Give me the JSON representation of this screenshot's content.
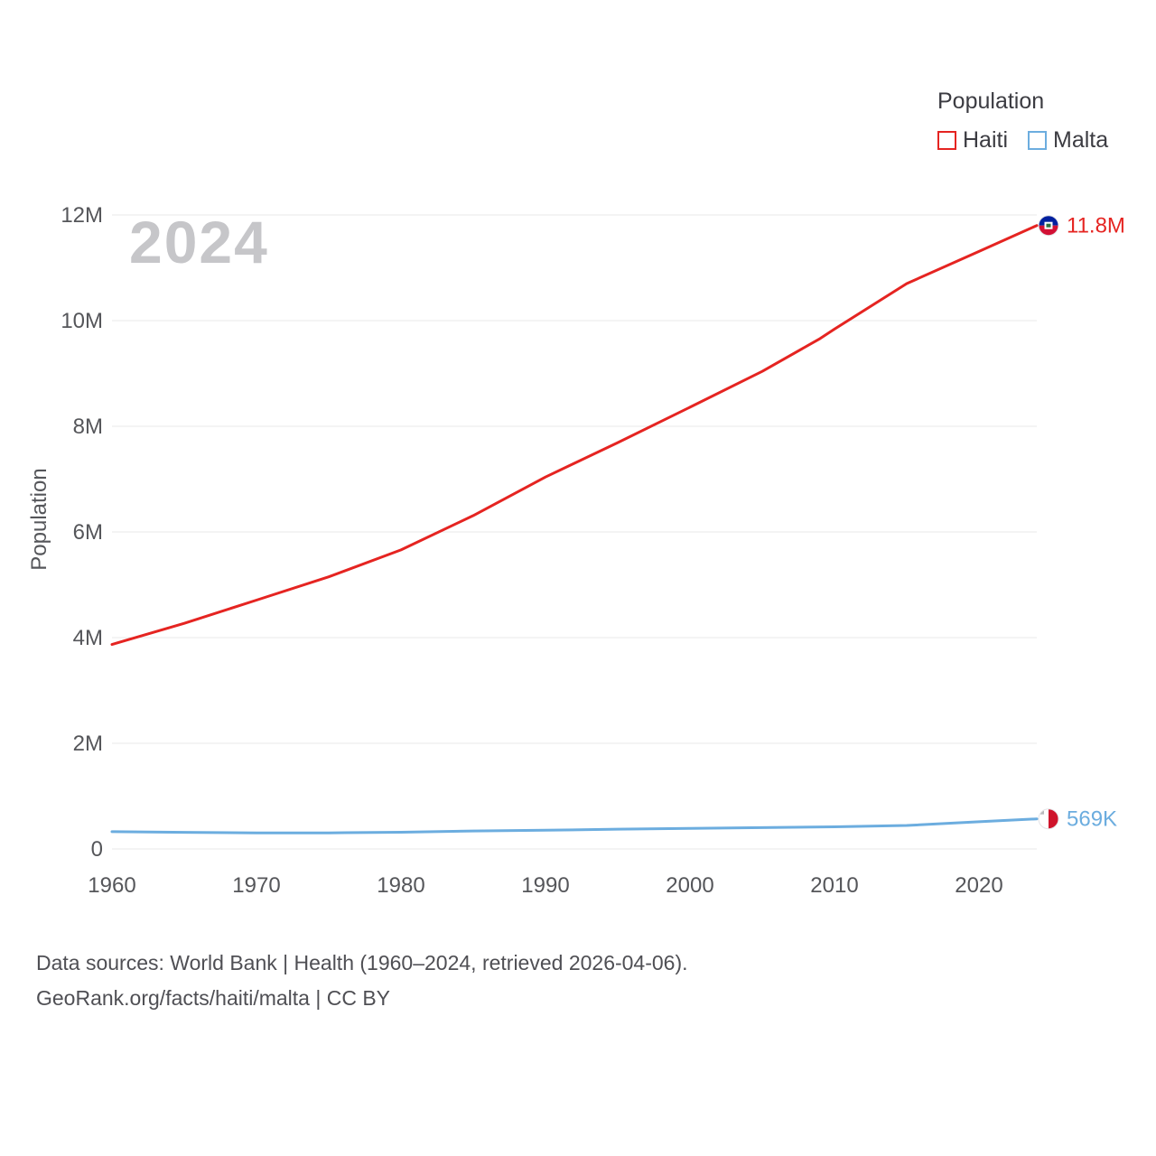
{
  "legend": {
    "title": "Population",
    "items": [
      {
        "label": "Haiti",
        "color": "#e52421"
      },
      {
        "label": "Malta",
        "color": "#6caddf"
      }
    ]
  },
  "watermark": "2024",
  "y_axis_title": "Population",
  "footer": {
    "line1": "Data sources: World Bank | Health (1960–2024, retrieved 2026-04-06).",
    "line2": "GeoRank.org/facts/haiti/malta | CC BY"
  },
  "chart_data": {
    "type": "line",
    "title": "Population",
    "xlabel": "",
    "ylabel": "Population",
    "xlim": [
      1960,
      2024
    ],
    "ylim": [
      0,
      12000000
    ],
    "grid": "horizontal",
    "legend_position": "top-right",
    "x_ticks": [
      1960,
      1970,
      1980,
      1990,
      2000,
      2010,
      2020
    ],
    "y_ticks": [
      {
        "v": 0,
        "label": "0"
      },
      {
        "v": 2000000,
        "label": "2M"
      },
      {
        "v": 4000000,
        "label": "4M"
      },
      {
        "v": 6000000,
        "label": "6M"
      },
      {
        "v": 8000000,
        "label": "8M"
      },
      {
        "v": 10000000,
        "label": "10M"
      },
      {
        "v": 12000000,
        "label": "12M"
      }
    ],
    "series": [
      {
        "name": "Haiti",
        "color": "#e52421",
        "end_label": "11.8M",
        "flag": "haiti",
        "x": [
          1960,
          1965,
          1970,
          1975,
          1980,
          1985,
          1990,
          1995,
          2000,
          2005,
          2009,
          2010,
          2015,
          2020,
          2024
        ],
        "values": [
          3870000,
          4270000,
          4710000,
          5150000,
          5660000,
          6310000,
          7040000,
          7690000,
          8360000,
          9040000,
          9660000,
          9840000,
          10700000,
          11310000,
          11800000
        ]
      },
      {
        "name": "Malta",
        "color": "#6caddf",
        "end_label": "569K",
        "flag": "malta",
        "x": [
          1960,
          1965,
          1970,
          1975,
          1980,
          1985,
          1990,
          1995,
          2000,
          2005,
          2010,
          2015,
          2020,
          2024
        ],
        "values": [
          327000,
          315000,
          303000,
          304000,
          317000,
          340000,
          354000,
          375000,
          390000,
          403000,
          418000,
          445000,
          515000,
          569000
        ]
      }
    ]
  }
}
